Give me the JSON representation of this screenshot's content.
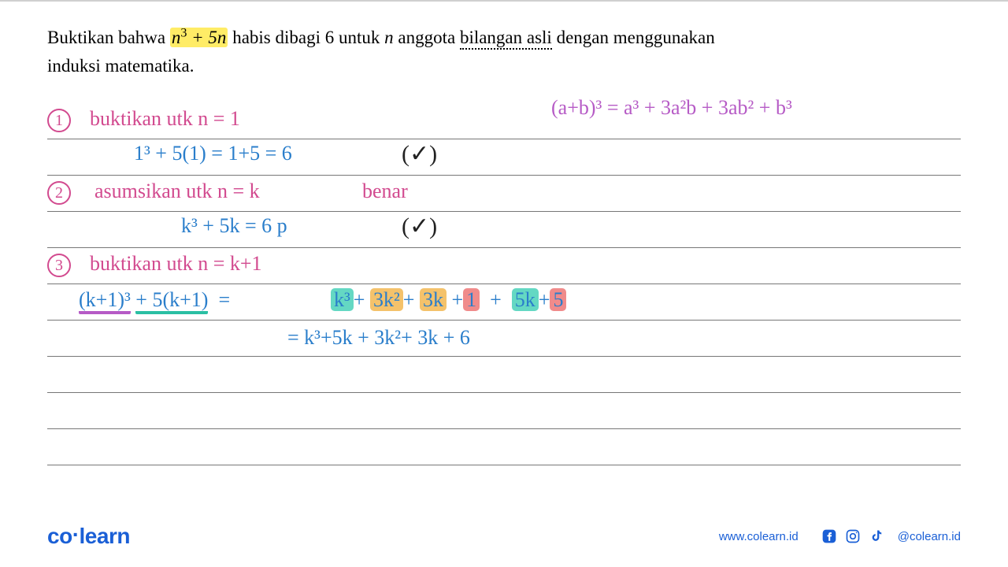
{
  "problem": {
    "pre": "Buktikan bahwa ",
    "expr_base": "n",
    "expr_sup": "3",
    "expr_tail": " + 5n",
    "mid": " habis dibagi 6 untuk ",
    "nvar": "n",
    "post1": " anggota ",
    "dotted": "bilangan asli",
    "post2": " dengan menggunakan",
    "line2": "induksi matematika."
  },
  "colors": {
    "purple": "#b65bc6",
    "pink": "#d24a8f",
    "blue": "#2a7ecb",
    "dark": "#222222",
    "hl_yellow": "#ffec66",
    "hl_teal": "#64d8c3",
    "hl_orange": "#f4c26b",
    "hl_red": "#f08b8b"
  },
  "lines_y": [
    46,
    92,
    138,
    184,
    230,
    276,
    322,
    368,
    414,
    460
  ],
  "step1": {
    "num": "1",
    "label": "buktikan  utk   n = 1"
  },
  "step1_calc": "1³ + 5(1) = 1+5 = 6",
  "check": "(✓)",
  "step2": {
    "num": "2",
    "label": "asumsikan  utk  n = k",
    "tag": "benar"
  },
  "step2_calc": "k³ + 5k  =  6 p",
  "step3": {
    "num": "3",
    "label": "buktikan  utk   n = k+1"
  },
  "step3_lhs_a": "(k+1)³",
  "step3_lhs_b": "+  5(k+1)",
  "eq": "=",
  "step3_rhs": {
    "t1": "k³",
    "plus1": "+",
    "t2": "3k²",
    "plus2": "+",
    "t3": "3k",
    "plus3": "+",
    "t4": "1",
    "plus4": "+",
    "t5": "5k",
    "plus5": "+",
    "t6": "5"
  },
  "step3_line2": "=    k³+5k  +  3k²+ 3k  + 6",
  "identity": "(a+b)³ =  a³ + 3a²b + 3ab² + b³",
  "footer": {
    "logo_co": "co",
    "logo_learn": "learn",
    "url": "www.colearn.id",
    "handle": "@colearn.id"
  }
}
